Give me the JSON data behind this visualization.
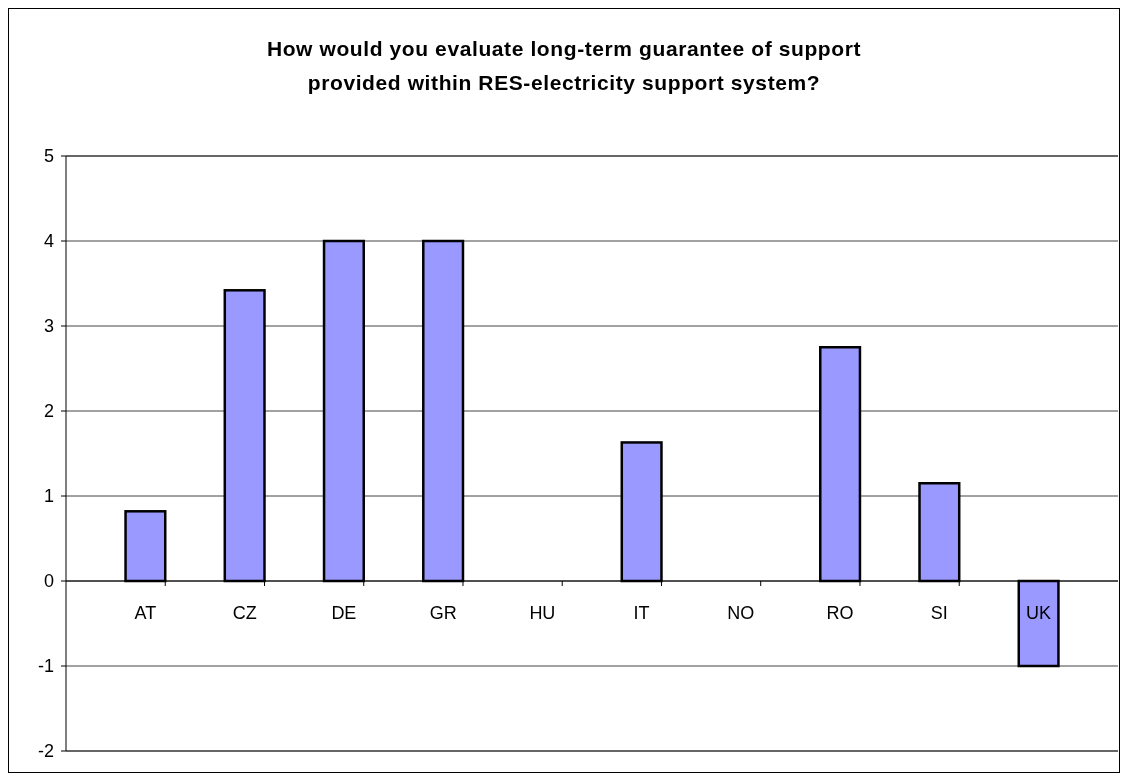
{
  "chart_data": {
    "type": "bar",
    "title": "How would you evaluate long-term guarantee of support\nprovided within RES-electricity support system?",
    "categories": [
      "AT",
      "CZ",
      "DE",
      "GR",
      "HU",
      "IT",
      "NO",
      "RO",
      "SI",
      "UK"
    ],
    "values": [
      0.82,
      3.42,
      4,
      4,
      0,
      1.63,
      0,
      2.75,
      1.15,
      -1
    ],
    "color": "#9999ff",
    "ylim": [
      -2,
      5
    ],
    "yticks": [
      -2,
      -1,
      0,
      1,
      2,
      3,
      4,
      5
    ],
    "grid": "y"
  }
}
